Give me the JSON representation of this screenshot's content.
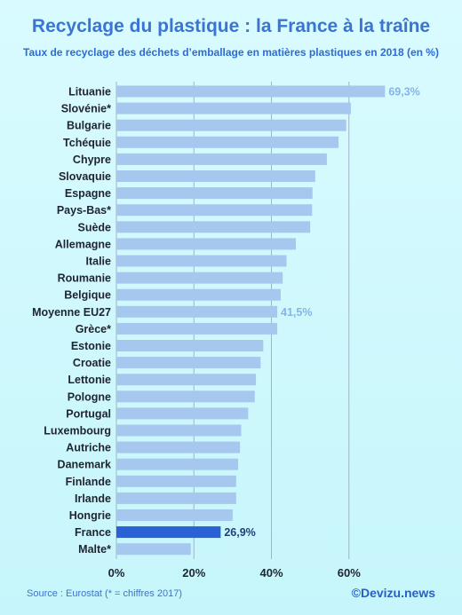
{
  "title": "Recyclage du plastique : la France à la traîne",
  "subtitle": "Taux de recyclage des déchets d’emballage en matières plastiques en 2018 (en %)",
  "source": "Source : Eurostat (* = chiffres 2017)",
  "credit": "©Devizu.news",
  "colors": {
    "bar": "#a6c8ee",
    "highlight": "#2a62d6",
    "label": "#1f2430",
    "value_label": "#86b3ea",
    "value_label_highlight": "#1f3f7a",
    "grid": "#9fb4c8"
  },
  "chart_data": {
    "type": "bar",
    "orientation": "horizontal",
    "categories": [
      "Lituanie",
      "Slovénie*",
      "Bulgarie",
      "Tchéquie",
      "Chypre",
      "Slovaquie",
      "Espagne",
      "Pays-Bas*",
      "Suède",
      "Allemagne",
      "Italie",
      "Roumanie",
      "Belgique",
      "Moyenne EU27",
      "Grèce*",
      "Estonie",
      "Croatie",
      "Lettonie",
      "Pologne",
      "Portugal",
      "Luxembourg",
      "Autriche",
      "Danemark",
      "Finlande",
      "Irlande",
      "Hongrie",
      "France",
      "Malte*"
    ],
    "values": [
      69.3,
      60.5,
      59.3,
      57.3,
      54.3,
      51.3,
      50.6,
      50.5,
      50.0,
      46.3,
      43.9,
      42.9,
      42.4,
      41.5,
      41.5,
      37.9,
      37.2,
      36.0,
      35.7,
      34.0,
      32.2,
      31.9,
      31.4,
      30.9,
      30.9,
      30.0,
      26.9,
      19.2
    ],
    "highlight": "France",
    "data_labels": [
      {
        "category": "Lituanie",
        "text": "69,3%"
      },
      {
        "category": "Moyenne EU27",
        "text": "41,5%"
      },
      {
        "category": "France",
        "text": "26,9%"
      }
    ],
    "xlim": [
      0,
      80
    ],
    "xticks": [
      0,
      20,
      40,
      60
    ],
    "xtick_labels": [
      "0%",
      "20%",
      "40%",
      "60%"
    ],
    "grid": true
  }
}
